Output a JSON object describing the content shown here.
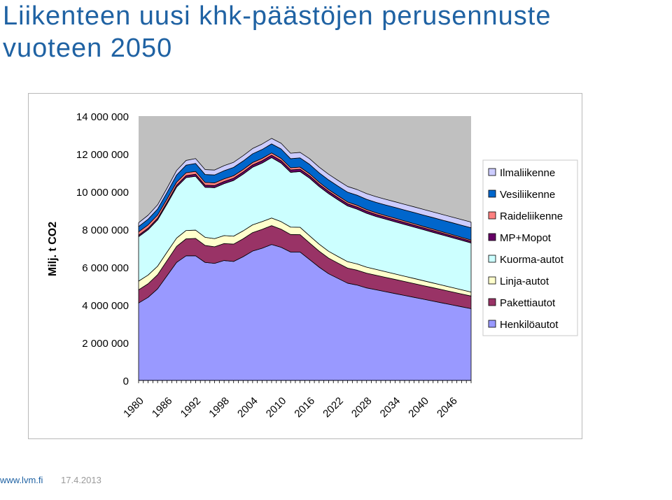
{
  "slide": {
    "title_line1": "Liikenteen uusi khk-päästöjen perusennuste",
    "title_line2": "vuoteen 2050"
  },
  "footer": {
    "url": "www.lvm.fi",
    "date": "17.4.2013"
  },
  "chart_data": {
    "type": "area",
    "stacked": true,
    "ylabel": "Milj. t CO2",
    "xlabel": "",
    "ylim": [
      0,
      14000000
    ],
    "yticks": [
      0,
      2000000,
      4000000,
      6000000,
      8000000,
      10000000,
      12000000,
      14000000
    ],
    "ytick_labels": [
      "0",
      "2 000 000",
      "4 000 000",
      "6 000 000",
      "8 000 000",
      "10 000 000",
      "12 000 000",
      "14 000 000"
    ],
    "xtick_labels": [
      "1980",
      "1986",
      "1992",
      "1998",
      "2004",
      "2010",
      "2016",
      "2022",
      "2028",
      "2034",
      "2040",
      "2046"
    ],
    "x_range": [
      1980,
      2050
    ],
    "plot_background": "#c0c0c0",
    "grid": false,
    "legend_position": "right",
    "x": [
      1980,
      1982,
      1984,
      1986,
      1988,
      1990,
      1992,
      1994,
      1996,
      1998,
      2000,
      2002,
      2004,
      2006,
      2008,
      2010,
      2012,
      2014,
      2016,
      2018,
      2020,
      2022,
      2024,
      2026,
      2028,
      2030,
      2032,
      2034,
      2036,
      2038,
      2040,
      2042,
      2044,
      2046,
      2048,
      2050
    ],
    "series": [
      {
        "name": "Henkilöautot",
        "color": "#9999ff",
        "values": [
          4100000,
          4400000,
          4850000,
          5550000,
          6250000,
          6600000,
          6600000,
          6250000,
          6200000,
          6350000,
          6300000,
          6550000,
          6850000,
          7000000,
          7200000,
          7050000,
          6800000,
          6800000,
          6400000,
          6000000,
          5650000,
          5400000,
          5150000,
          5050000,
          4900000,
          4800000,
          4700000,
          4600000,
          4500000,
          4400000,
          4300000,
          4200000,
          4100000,
          4000000,
          3900000,
          3800000
        ]
      },
      {
        "name": "Pakettiautot",
        "color": "#993366",
        "values": [
          700000,
          720000,
          750000,
          800000,
          850000,
          900000,
          920000,
          900000,
          880000,
          900000,
          920000,
          950000,
          980000,
          1000000,
          1000000,
          960000,
          930000,
          920000,
          880000,
          850000,
          830000,
          810000,
          800000,
          790000,
          780000,
          770000,
          760000,
          750000,
          740000,
          730000,
          720000,
          710000,
          700000,
          690000,
          680000,
          670000
        ]
      },
      {
        "name": "Linja-autot",
        "color": "#ffffcc",
        "values": [
          460000,
          460000,
          450000,
          450000,
          440000,
          440000,
          440000,
          430000,
          430000,
          420000,
          420000,
          420000,
          410000,
          410000,
          400000,
          400000,
          390000,
          390000,
          380000,
          370000,
          360000,
          350000,
          340000,
          330000,
          320000,
          310000,
          300000,
          290000,
          280000,
          270000,
          260000,
          250000,
          240000,
          230000,
          220000,
          210000
        ]
      },
      {
        "name": "Kuorma-autot",
        "color": "#ccffff",
        "values": [
          2350000,
          2400000,
          2450000,
          2550000,
          2700000,
          2800000,
          2850000,
          2650000,
          2700000,
          2750000,
          2950000,
          3000000,
          3050000,
          3100000,
          3200000,
          3100000,
          2900000,
          2950000,
          3050000,
          3050000,
          3050000,
          3000000,
          2950000,
          2900000,
          2850000,
          2800000,
          2780000,
          2760000,
          2740000,
          2720000,
          2700000,
          2680000,
          2660000,
          2640000,
          2620000,
          2600000
        ]
      },
      {
        "name": "MP+Mopot",
        "color": "#660066",
        "values": [
          80000,
          85000,
          90000,
          95000,
          100000,
          105000,
          110000,
          110000,
          112000,
          115000,
          118000,
          120000,
          122000,
          125000,
          128000,
          130000,
          128000,
          126000,
          124000,
          122000,
          120000,
          118000,
          116000,
          114000,
          112000,
          110000,
          108000,
          106000,
          104000,
          102000,
          100000,
          98000,
          96000,
          94000,
          92000,
          90000
        ]
      },
      {
        "name": "Raideliikenne",
        "color": "#ff8080",
        "values": [
          180000,
          175000,
          170000,
          165000,
          160000,
          155000,
          150000,
          145000,
          140000,
          140000,
          135000,
          130000,
          130000,
          125000,
          120000,
          120000,
          115000,
          110000,
          110000,
          105000,
          100000,
          100000,
          95000,
          95000,
          90000,
          90000,
          85000,
          85000,
          80000,
          80000,
          75000,
          75000,
          70000,
          70000,
          65000,
          65000
        ]
      },
      {
        "name": "Vesiliikenne",
        "color": "#0066cc",
        "values": [
          280000,
          300000,
          320000,
          350000,
          380000,
          400000,
          420000,
          420000,
          420000,
          430000,
          440000,
          450000,
          460000,
          470000,
          480000,
          500000,
          480000,
          490000,
          500000,
          500000,
          510000,
          510000,
          520000,
          530000,
          540000,
          550000,
          560000,
          570000,
          580000,
          590000,
          600000,
          610000,
          620000,
          630000,
          640000,
          650000
        ]
      },
      {
        "name": "Ilmaliikenne",
        "color": "#ccccff",
        "values": [
          200000,
          210000,
          220000,
          230000,
          240000,
          250000,
          260000,
          260000,
          260000,
          270000,
          270000,
          280000,
          280000,
          290000,
          290000,
          300000,
          290000,
          290000,
          300000,
          300000,
          300000,
          300000,
          300000,
          300000,
          300000,
          300000,
          300000,
          300000,
          300000,
          300000,
          300000,
          300000,
          300000,
          300000,
          300000,
          300000
        ]
      }
    ],
    "legend_order": [
      "Ilmaliikenne",
      "Vesiliikenne",
      "Raideliikenne",
      "MP+Mopot",
      "Kuorma-autot",
      "Linja-autot",
      "Pakettiautot",
      "Henkilöautot"
    ]
  }
}
